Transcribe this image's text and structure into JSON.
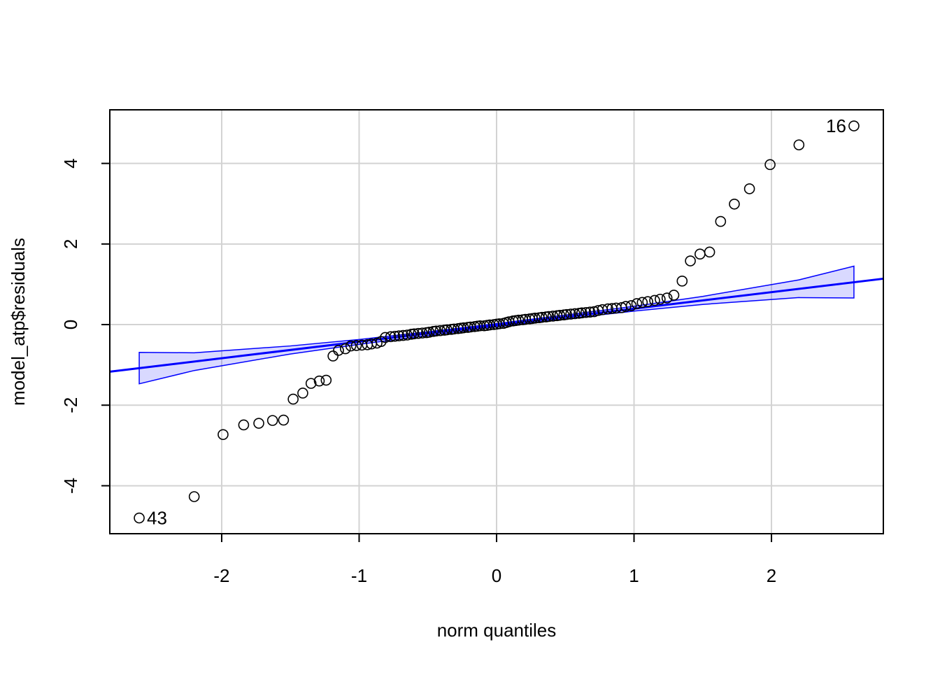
{
  "chart_data": {
    "type": "qq",
    "x_label": "norm quantiles",
    "y_label": "model_atp$residuals",
    "xlim": [
      -2.814,
      2.814
    ],
    "ylim": [
      -5.19,
      5.33
    ],
    "xticks": [
      -2,
      -1,
      0,
      1,
      2
    ],
    "yticks": [
      -4,
      -2,
      0,
      2,
      4
    ],
    "grid": true,
    "point_color": "#000000",
    "line_color": "#0000ff",
    "band_color": "#0000ff",
    "x": [
      -2.6,
      -2.2,
      -1.99,
      -1.84,
      -1.73,
      -1.63,
      -1.55,
      -1.48,
      -1.41,
      -1.35,
      -1.29,
      -1.24,
      -1.19,
      -1.15,
      -1.1,
      -1.06,
      -1.02,
      -0.98,
      -0.94,
      -0.91,
      -0.87,
      -0.84,
      -0.81,
      -0.77,
      -0.74,
      -0.71,
      -0.68,
      -0.65,
      -0.62,
      -0.6,
      -0.57,
      -0.54,
      -0.51,
      -0.49,
      -0.46,
      -0.44,
      -0.41,
      -0.38,
      -0.36,
      -0.33,
      -0.31,
      -0.28,
      -0.26,
      -0.24,
      -0.21,
      -0.19,
      -0.16,
      -0.14,
      -0.12,
      -0.09,
      -0.07,
      -0.05,
      -0.02,
      0,
      0.02,
      0.05,
      0.07,
      0.09,
      0.12,
      0.14,
      0.16,
      0.19,
      0.21,
      0.24,
      0.26,
      0.28,
      0.31,
      0.33,
      0.36,
      0.38,
      0.41,
      0.44,
      0.46,
      0.49,
      0.51,
      0.54,
      0.57,
      0.6,
      0.62,
      0.65,
      0.68,
      0.71,
      0.74,
      0.77,
      0.81,
      0.84,
      0.87,
      0.91,
      0.94,
      0.98,
      1.02,
      1.06,
      1.1,
      1.15,
      1.19,
      1.24,
      1.29,
      1.35,
      1.41,
      1.48,
      1.55,
      1.63,
      1.73,
      1.84,
      1.99,
      2.2,
      2.6
    ],
    "values": [
      -4.8,
      -4.27,
      -2.73,
      -2.49,
      -2.45,
      -2.38,
      -2.37,
      -1.85,
      -1.7,
      -1.46,
      -1.4,
      -1.38,
      -0.78,
      -0.64,
      -0.6,
      -0.53,
      -0.52,
      -0.51,
      -0.5,
      -0.48,
      -0.46,
      -0.42,
      -0.32,
      -0.3,
      -0.29,
      -0.28,
      -0.27,
      -0.26,
      -0.24,
      -0.23,
      -0.22,
      -0.21,
      -0.2,
      -0.19,
      -0.17,
      -0.16,
      -0.15,
      -0.14,
      -0.13,
      -0.12,
      -0.11,
      -0.1,
      -0.09,
      -0.08,
      -0.07,
      -0.06,
      -0.05,
      -0.04,
      -0.03,
      -0.03,
      -0.02,
      -0.01,
      0.0,
      0.01,
      0.02,
      0.03,
      0.05,
      0.07,
      0.09,
      0.1,
      0.11,
      0.12,
      0.13,
      0.14,
      0.15,
      0.16,
      0.17,
      0.18,
      0.19,
      0.2,
      0.21,
      0.22,
      0.23,
      0.24,
      0.25,
      0.26,
      0.27,
      0.28,
      0.29,
      0.3,
      0.31,
      0.32,
      0.35,
      0.37,
      0.39,
      0.4,
      0.41,
      0.42,
      0.45,
      0.47,
      0.52,
      0.55,
      0.57,
      0.6,
      0.63,
      0.66,
      0.73,
      1.08,
      1.58,
      1.75,
      1.8,
      2.56,
      2.99,
      3.37,
      3.97,
      4.46,
      4.93
    ],
    "line": {
      "intercept": -0.015,
      "slope": 0.41
    },
    "envelope": {
      "x": [
        -2.6,
        -2.2,
        -1.5,
        -1,
        -0.5,
        0,
        0.5,
        1,
        1.5,
        2.2,
        2.6
      ],
      "upper": [
        -0.69,
        -0.7,
        -0.53,
        -0.37,
        -0.18,
        0.025,
        0.235,
        0.455,
        0.7,
        1.11,
        1.45
      ],
      "lower": [
        -1.47,
        -1.14,
        -0.73,
        -0.49,
        -0.27,
        -0.055,
        0.145,
        0.335,
        0.5,
        0.67,
        0.66
      ]
    },
    "annotations": [
      {
        "text": "16",
        "x": 2.6,
        "y": 4.93,
        "side": "left"
      },
      {
        "text": "43",
        "x": -2.6,
        "y": -4.8,
        "side": "right"
      }
    ]
  }
}
